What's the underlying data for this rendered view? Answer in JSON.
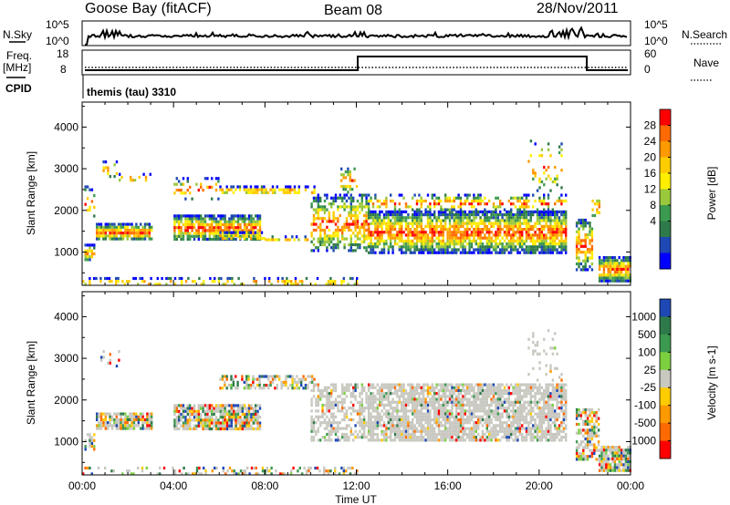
{
  "header": {
    "station": "Goose Bay (fitACF)",
    "beam": "Beam 08",
    "date": "28/Nov/2011"
  },
  "sky_panel": {
    "left_label": "N.Sky",
    "left_ticks": [
      "10^5",
      "10^0"
    ],
    "right_ticks": [
      "10^5",
      "10^0"
    ],
    "right_label": "N.Search"
  },
  "freq_panel": {
    "left_label_top": "Freq.",
    "left_label_bottom": "[MHz]",
    "left_ticks": [
      "18",
      "8"
    ],
    "right_ticks": [
      "60",
      "0"
    ],
    "right_label": "Nave"
  },
  "cpid": {
    "label": "CPID",
    "value": "themis (tau) 3310"
  },
  "chart_data": [
    {
      "type": "heatmap",
      "quantity": "Power",
      "ylabel": "Slant Range [km]",
      "ylim": [
        200,
        4600
      ],
      "yticks": [
        1000,
        2000,
        3000,
        4000
      ],
      "xlim": [
        0,
        24
      ],
      "colorbar": {
        "label": "Power [dB]",
        "ticks": [
          "28",
          "24",
          "20",
          "16",
          "12",
          "8",
          "4"
        ],
        "colors": [
          "#ff0000",
          "#ff6a00",
          "#ff9a00",
          "#ffcc00",
          "#ffee00",
          "#9ac83c",
          "#3c9a50",
          "#2e7a4a",
          "#1e48b4",
          "#0000ff"
        ]
      },
      "scatter_regions": [
        {
          "t": [
            0.0,
            12.0
          ],
          "r": [
            200,
            400
          ],
          "density": 0.35
        },
        {
          "t": [
            0.1,
            0.5
          ],
          "r": [
            800,
            1200
          ],
          "density": 0.7
        },
        {
          "t": [
            0.1,
            0.5
          ],
          "r": [
            1800,
            2600
          ],
          "density": 0.3
        },
        {
          "t": [
            0.6,
            3.0
          ],
          "r": [
            1300,
            1700
          ],
          "density": 0.85
        },
        {
          "t": [
            0.8,
            1.6
          ],
          "r": [
            2800,
            3200
          ],
          "density": 0.3
        },
        {
          "t": [
            1.5,
            3.0
          ],
          "r": [
            2700,
            2900
          ],
          "density": 0.3
        },
        {
          "t": [
            4.0,
            7.8
          ],
          "r": [
            1300,
            1900
          ],
          "density": 0.85
        },
        {
          "t": [
            4.0,
            6.0
          ],
          "r": [
            2300,
            2800
          ],
          "density": 0.25
        },
        {
          "t": [
            6.0,
            10.2
          ],
          "r": [
            2400,
            2600
          ],
          "density": 0.6
        },
        {
          "t": [
            6.0,
            8.0
          ],
          "r": [
            1300,
            1500
          ],
          "density": 0.5
        },
        {
          "t": [
            8.0,
            10.0
          ],
          "r": [
            1300,
            1400
          ],
          "density": 0.4
        },
        {
          "t": [
            10.0,
            12.5
          ],
          "r": [
            1000,
            2400
          ],
          "density": 0.55
        },
        {
          "t": [
            11.3,
            12.0
          ],
          "r": [
            2400,
            3100
          ],
          "density": 0.3
        },
        {
          "t": [
            12.5,
            21.2
          ],
          "r": [
            1000,
            2000
          ],
          "density": 0.8
        },
        {
          "t": [
            12.5,
            21.2
          ],
          "r": [
            2000,
            2400
          ],
          "density": 0.35
        },
        {
          "t": [
            19.5,
            21.0
          ],
          "r": [
            2500,
            3700
          ],
          "density": 0.1
        },
        {
          "t": [
            21.6,
            22.3
          ],
          "r": [
            600,
            1800
          ],
          "density": 0.6
        },
        {
          "t": [
            22.3,
            22.6
          ],
          "r": [
            1800,
            2400
          ],
          "density": 0.4
        },
        {
          "t": [
            22.6,
            24.0
          ],
          "r": [
            300,
            900
          ],
          "density": 0.9
        }
      ]
    },
    {
      "type": "heatmap",
      "quantity": "Velocity",
      "ylabel": "Slant Range [km]",
      "ylim": [
        200,
        4600
      ],
      "yticks": [
        1000,
        2000,
        3000,
        4000
      ],
      "xlim": [
        0,
        24
      ],
      "xticks": [
        "00:00",
        "04:00",
        "08:00",
        "12:00",
        "16:00",
        "20:00",
        "00:00"
      ],
      "xlabel": "Time UT",
      "colorbar": {
        "label": "Velocity [m s-1]",
        "ticks": [
          "1000",
          "500",
          "100",
          "25",
          "-25",
          "-100",
          "-500",
          "-1000"
        ],
        "colors": [
          "#1e48b4",
          "#2e7a4a",
          "#3c9a50",
          "#7cd040",
          "#c8c8c0",
          "#ffcc00",
          "#ff9a00",
          "#ff6a00",
          "#ff0000"
        ]
      },
      "scatter_regions": [
        {
          "t": [
            0.0,
            12.0
          ],
          "r": [
            200,
            400
          ],
          "density": 0.35
        },
        {
          "t": [
            0.1,
            0.5
          ],
          "r": [
            800,
            1200
          ],
          "density": 0.7
        },
        {
          "t": [
            0.6,
            3.0
          ],
          "r": [
            1300,
            1700
          ],
          "density": 0.85
        },
        {
          "t": [
            0.8,
            1.6
          ],
          "r": [
            2800,
            3200
          ],
          "density": 0.3
        },
        {
          "t": [
            4.0,
            7.8
          ],
          "r": [
            1300,
            1900
          ],
          "density": 0.85
        },
        {
          "t": [
            6.0,
            10.2
          ],
          "r": [
            2300,
            2600
          ],
          "density": 0.6
        },
        {
          "t": [
            10.0,
            12.5
          ],
          "r": [
            1000,
            2400
          ],
          "density": 0.55
        },
        {
          "t": [
            12.5,
            21.2
          ],
          "r": [
            1000,
            2400
          ],
          "density": 0.8
        },
        {
          "t": [
            19.5,
            21.0
          ],
          "r": [
            2500,
            3700
          ],
          "density": 0.1
        },
        {
          "t": [
            21.6,
            22.6
          ],
          "r": [
            600,
            1800
          ],
          "density": 0.6
        },
        {
          "t": [
            22.6,
            24.0
          ],
          "r": [
            300,
            900
          ],
          "density": 0.9
        }
      ]
    }
  ]
}
